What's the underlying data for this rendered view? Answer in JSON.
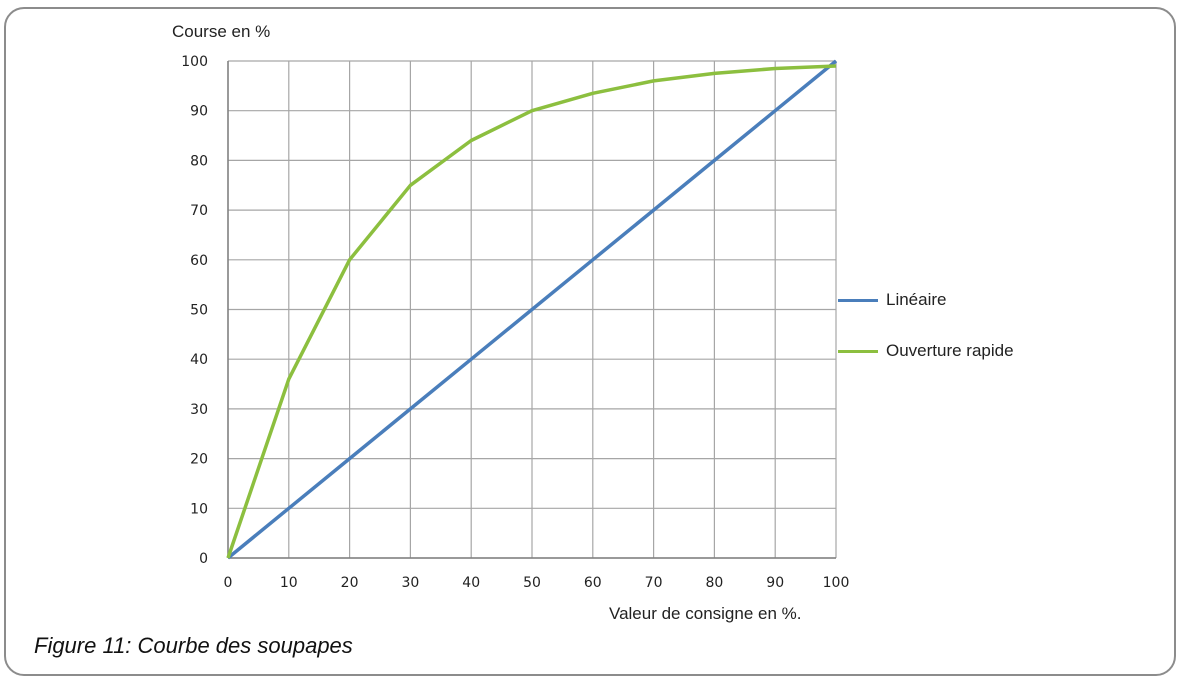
{
  "figure": {
    "caption": "Figure 11: Courbe des soupapes"
  },
  "chart_data": {
    "type": "line",
    "ylabel": "Course en %",
    "xlabel": "Valeur de consigne en %.",
    "xlim": [
      0,
      100
    ],
    "ylim": [
      0,
      100
    ],
    "x_ticks": [
      0,
      10,
      20,
      30,
      40,
      50,
      60,
      70,
      80,
      90,
      100
    ],
    "y_ticks": [
      0,
      10,
      20,
      30,
      40,
      50,
      60,
      70,
      80,
      90,
      100
    ],
    "grid": true,
    "legend_position": "right",
    "series": [
      {
        "name": "Linéaire",
        "color": "#4a7ebb",
        "x": [
          0,
          10,
          20,
          30,
          40,
          50,
          60,
          70,
          80,
          90,
          100
        ],
        "y": [
          0,
          10,
          20,
          30,
          40,
          50,
          60,
          70,
          80,
          90,
          100
        ]
      },
      {
        "name": "Ouverture rapide",
        "color": "#8cbf3f",
        "x": [
          0,
          10,
          20,
          30,
          40,
          50,
          60,
          70,
          80,
          90,
          100
        ],
        "y": [
          0,
          36,
          60,
          75,
          84,
          90,
          93.5,
          96,
          97.5,
          98.5,
          99
        ]
      }
    ]
  }
}
